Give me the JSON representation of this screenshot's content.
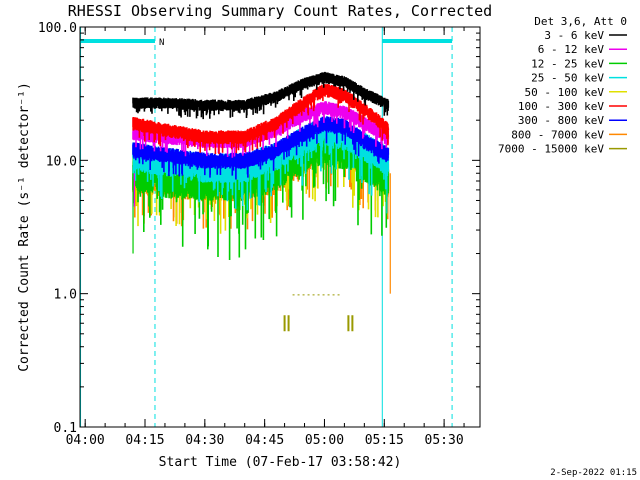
{
  "chart_data": {
    "type": "line",
    "title": "RHESSI Observing Summary Count Rates, Corrected",
    "xlabel": "Start Time (07-Feb-17 03:58:42)",
    "ylabel": "Corrected Count Rate (s⁻¹ detector⁻¹)",
    "yscale": "log",
    "ylim": [
      0.1,
      100.0
    ],
    "xlim": [
      "03:58:42",
      "05:39:00"
    ],
    "y_ticks": [
      "100.0",
      "10.0",
      "1.0",
      "0.1"
    ],
    "x_ticks": [
      "04:00",
      "04:15",
      "04:30",
      "04:45",
      "05:00",
      "05:15",
      "05:30"
    ],
    "legend_header": "Det 3,6, Att 0",
    "legend_position": "top-right, outside plot",
    "night_flag_label": "N",
    "footer_date": "2-Sep-2022 01:15",
    "series": [
      {
        "name": "3 - 6 keV",
        "color": "#000000",
        "times": [
          "04:12",
          "04:20",
          "04:30",
          "04:40",
          "04:48",
          "04:55",
          "05:00",
          "05:05",
          "05:10",
          "05:16"
        ],
        "values": [
          27,
          27,
          26,
          26,
          30,
          38,
          42,
          39,
          32,
          26
        ]
      },
      {
        "name": "6 - 12 keV",
        "color": "#ee00ee",
        "times": [
          "04:12",
          "04:20",
          "04:30",
          "04:40",
          "04:48",
          "04:55",
          "05:00",
          "05:05",
          "05:10",
          "05:16"
        ],
        "values": [
          16,
          15,
          14,
          14,
          17,
          22,
          25,
          23,
          19,
          15
        ]
      },
      {
        "name": "12 - 25 keV",
        "color": "#00cc00",
        "times": [
          "04:12",
          "04:20",
          "04:30",
          "04:40",
          "04:48",
          "04:55",
          "05:00",
          "05:05",
          "05:10",
          "05:16"
        ],
        "values": [
          9,
          8,
          7.5,
          7.5,
          9,
          12,
          14,
          13,
          10.5,
          8
        ]
      },
      {
        "name": "25 - 50 keV",
        "color": "#00e0e0",
        "times": [
          "04:12",
          "04:20",
          "04:30",
          "04:40",
          "04:48",
          "04:55",
          "05:00",
          "05:05",
          "05:10",
          "05:16"
        ],
        "values": [
          11,
          10,
          9,
          9,
          11,
          14.5,
          17,
          15.5,
          13,
          10
        ]
      },
      {
        "name": "50 - 100 keV",
        "color": "#e0e000",
        "times": [
          "04:12",
          "04:20",
          "04:30",
          "04:40",
          "04:48",
          "04:55",
          "05:00",
          "05:05",
          "05:10",
          "05:16"
        ],
        "values": [
          9.5,
          9,
          8,
          8,
          9.5,
          12.5,
          15,
          14,
          11,
          9
        ]
      },
      {
        "name": "100 - 300 keV",
        "color": "#ff0000",
        "times": [
          "04:12",
          "04:20",
          "04:30",
          "04:40",
          "04:48",
          "04:55",
          "05:00",
          "05:05",
          "05:10",
          "05:16"
        ],
        "values": [
          19,
          17,
          15,
          15,
          19,
          27,
          34,
          31,
          24,
          17
        ]
      },
      {
        "name": "300 - 800 keV",
        "color": "#0000ff",
        "times": [
          "04:12",
          "04:20",
          "04:30",
          "04:40",
          "04:48",
          "04:55",
          "05:00",
          "05:05",
          "05:10",
          "05:16"
        ],
        "values": [
          12,
          11,
          10,
          10,
          12,
          16,
          19,
          18,
          14,
          11
        ]
      },
      {
        "name": "800 - 7000 keV",
        "color": "#ff8800",
        "times": [
          "04:12",
          "04:20",
          "04:30",
          "04:40",
          "04:48",
          "04:55",
          "05:00",
          "05:05",
          "05:10",
          "05:16"
        ],
        "values": [
          7.5,
          7,
          6.5,
          6.5,
          7.5,
          10.5,
          13,
          12,
          9.5,
          7
        ]
      },
      {
        "name": "7000 - 15000 keV",
        "color": "#999900",
        "times": [
          "04:50",
          "04:51",
          "05:06",
          "05:07"
        ],
        "values": [
          0.6,
          0.6,
          0.6,
          0.6
        ]
      }
    ],
    "vertical_markers": [
      {
        "time": "03:58:50",
        "style": "solid",
        "color": "#00e0e0"
      },
      {
        "time": "04:17:30",
        "style": "dashed",
        "color": "#00e0e0"
      },
      {
        "time": "05:14:30",
        "style": "solid",
        "color": "#00e0e0"
      },
      {
        "time": "05:32:00",
        "style": "dashed",
        "color": "#00e0e0"
      }
    ],
    "night_intervals": [
      [
        "03:58:50",
        "04:17:30"
      ],
      [
        "05:14:30",
        "05:32:00"
      ]
    ],
    "colors": {
      "background": "#ffffff",
      "axes": "#000000",
      "markers": "#00e0e0"
    }
  }
}
